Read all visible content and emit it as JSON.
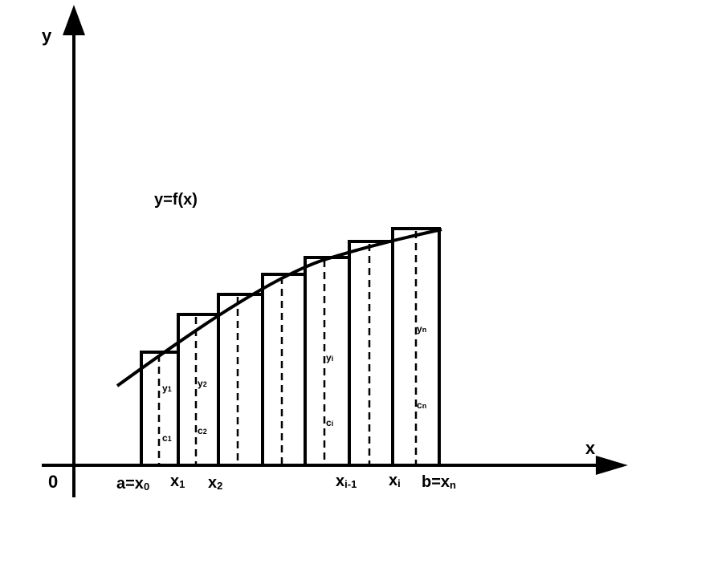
{
  "axes": {
    "y_label": "y",
    "x_label": "x",
    "origin_label": "0"
  },
  "function_label": "y=f(x)",
  "x_ticks": [
    {
      "main": "a=x",
      "sub": "0"
    },
    {
      "main": "x",
      "sub": "1"
    },
    {
      "main": "x",
      "sub": "2"
    },
    {
      "main": "x",
      "sub": "i-1"
    },
    {
      "main": "x",
      "sub": "i"
    },
    {
      "main": "b=x",
      "sub": "n"
    }
  ],
  "point_labels": [
    {
      "y_main": "y",
      "y_sub": "1",
      "c_main": "c",
      "c_sub": "1"
    },
    {
      "y_main": "y",
      "y_sub": "2",
      "c_main": "c",
      "c_sub": "2"
    },
    {
      "y_main": "y",
      "y_sub": "i",
      "c_main": "c",
      "c_sub": "i"
    },
    {
      "y_main": "y",
      "y_sub": "n",
      "c_main": "c",
      "c_sub": "n"
    }
  ],
  "colors": {
    "stroke": "#000000",
    "background": "#ffffff"
  }
}
